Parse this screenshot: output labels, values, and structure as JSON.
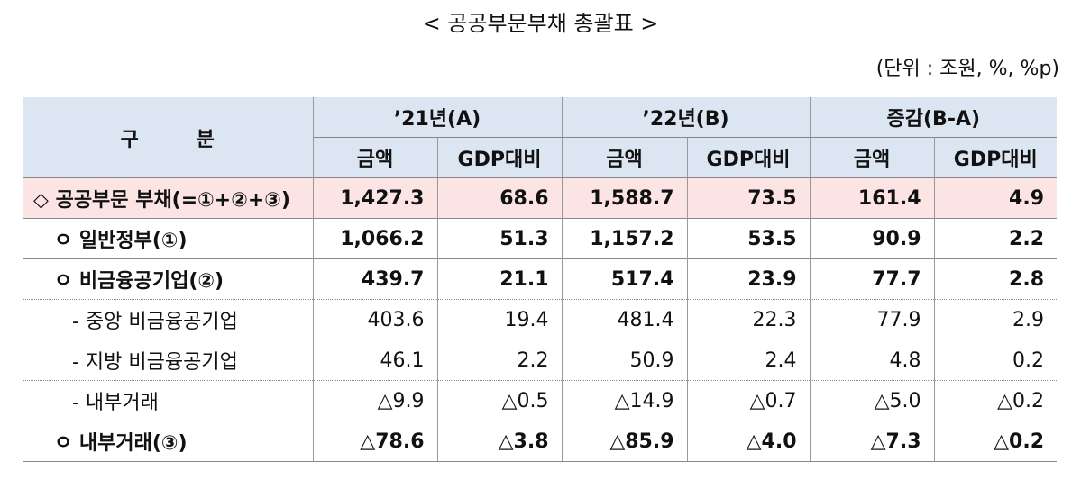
{
  "header": {
    "title": "< 공공부문부채 총괄표 >",
    "unit": "(단위 : 조원, %, %p)"
  },
  "table": {
    "corner": "구 분",
    "columns": [
      "’21년(A)",
      "’22년(B)",
      "증감(B-A)"
    ],
    "subcolumns": [
      "금액",
      "GDP대비",
      "금액",
      "GDP대비",
      "금액",
      "GDP대비"
    ],
    "rows": [
      {
        "label": "◇ 공공부문 부채(=①+②+③)",
        "level": 0,
        "values": [
          "1,427.3",
          "68.6",
          "1,588.7",
          "73.5",
          "161.4",
          "4.9"
        ]
      },
      {
        "label": "ㅇ 일반정부(①)",
        "level": 1,
        "values": [
          "1,066.2",
          "51.3",
          "1,157.2",
          "53.5",
          "90.9",
          "2.2"
        ]
      },
      {
        "label": "ㅇ 비금융공기업(②)",
        "level": 1,
        "values": [
          "439.7",
          "21.1",
          "517.4",
          "23.9",
          "77.7",
          "2.8"
        ]
      },
      {
        "label": "- 중앙 비금융공기업",
        "level": 2,
        "values": [
          "403.6",
          "19.4",
          "481.4",
          "22.3",
          "77.9",
          "2.9"
        ]
      },
      {
        "label": "- 지방 비금융공기업",
        "level": 2,
        "values": [
          "46.1",
          "2.2",
          "50.9",
          "2.4",
          "4.8",
          "0.2"
        ]
      },
      {
        "label": "- 내부거래",
        "level": 2,
        "values": [
          "△9.9",
          "△0.5",
          "△14.9",
          "△0.7",
          "△5.0",
          "△0.2"
        ]
      },
      {
        "label": "ㅇ 내부거래(③)",
        "level": 1,
        "values": [
          "△78.6",
          "△3.8",
          "△85.9",
          "△4.0",
          "△7.3",
          "△0.2"
        ]
      }
    ]
  }
}
